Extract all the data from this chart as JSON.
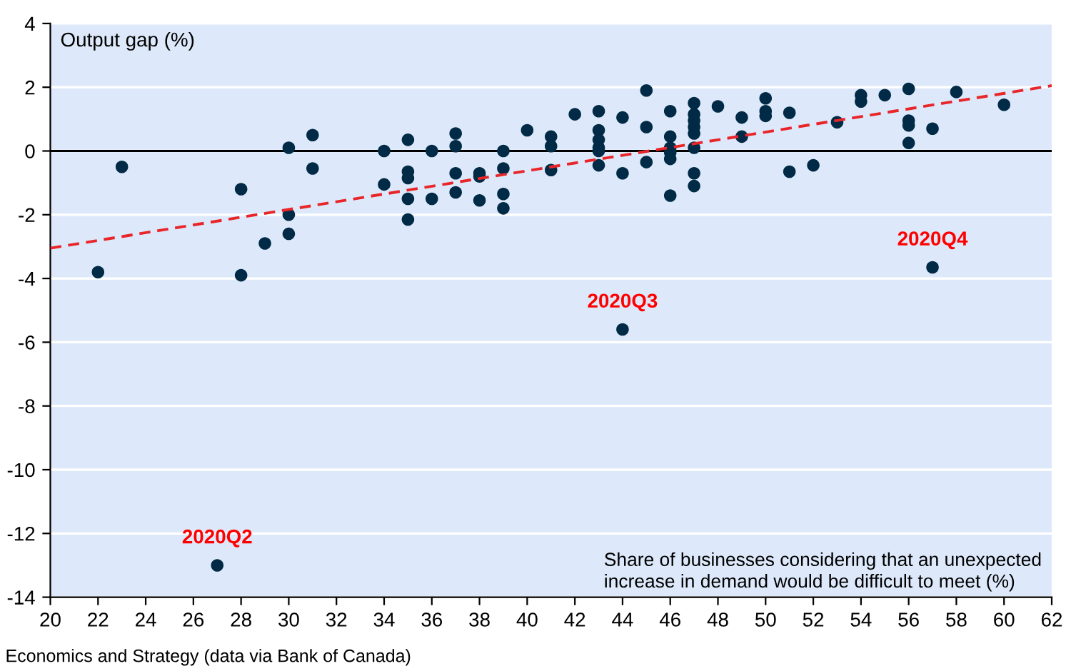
{
  "chart_data": {
    "type": "scatter",
    "xlabel": "Share of businesses considering that an unexpected\nincrease in demand would be difficult to meet (%)",
    "ylabel": "Output gap (%)",
    "xlim": [
      20,
      62
    ],
    "xticks": [
      20,
      22,
      24,
      26,
      28,
      30,
      32,
      34,
      36,
      38,
      40,
      42,
      44,
      46,
      48,
      50,
      52,
      54,
      56,
      58,
      60,
      62
    ],
    "ylim": [
      -14,
      4
    ],
    "yticks": [
      -14,
      -12,
      -10,
      -8,
      -6,
      -4,
      -2,
      0,
      2,
      4
    ],
    "grid": "y",
    "marker": "circle",
    "series": [
      {
        "color": "#002a45",
        "x": [
          22,
          23,
          27,
          28,
          28,
          29,
          30,
          30,
          30,
          31,
          31,
          34,
          34,
          35,
          35,
          35,
          35,
          35,
          36,
          36,
          37,
          37,
          37,
          37,
          38,
          38,
          38,
          39,
          39,
          39,
          39,
          40,
          41,
          41,
          41,
          42,
          43,
          43,
          43,
          43,
          43,
          43,
          44,
          44,
          44,
          45,
          45,
          45,
          46,
          46,
          46,
          46,
          46,
          46,
          47,
          47,
          47,
          47,
          47,
          47,
          47,
          47,
          48,
          49,
          49,
          50,
          50,
          50,
          51,
          51,
          52,
          53,
          54,
          54,
          55,
          56,
          56,
          56,
          56,
          57,
          57,
          58,
          60
        ],
        "values": [
          -3.8,
          -0.5,
          -13,
          -1.2,
          -3.9,
          -2.9,
          0.1,
          -2.0,
          -2.6,
          0.5,
          -0.55,
          0,
          -1.05,
          0.35,
          -0.65,
          -0.85,
          -1.5,
          -2.15,
          0,
          -1.5,
          0.55,
          0.15,
          -0.7,
          -1.3,
          -0.7,
          -0.8,
          -1.55,
          0,
          -0.55,
          -1.35,
          -1.8,
          0.65,
          0.45,
          0.15,
          -0.6,
          1.15,
          1.25,
          0.65,
          0.35,
          0.1,
          0,
          -0.45,
          1.05,
          -0.7,
          -5.6,
          1.9,
          0.75,
          -0.35,
          1.25,
          0.45,
          0.1,
          -0.05,
          -0.25,
          -1.4,
          1.5,
          1.15,
          0.95,
          0.75,
          0.55,
          0.1,
          -0.7,
          -1.1,
          1.4,
          1.05,
          0.45,
          1.65,
          1.25,
          1.1,
          1.2,
          -0.65,
          -0.45,
          0.9,
          1.75,
          1.55,
          1.75,
          1.95,
          0.95,
          0.8,
          0.25,
          0.7,
          -3.65,
          1.85,
          1.45
        ]
      },
      {
        "type": "line",
        "color": "#e8262a",
        "line_style": "dashed",
        "marker": "none",
        "x": [
          20,
          62
        ],
        "values": [
          -3.05,
          2.05
        ]
      }
    ],
    "ref_lines": [
      {
        "axis": "y",
        "value": 0,
        "color": "#000000"
      }
    ],
    "annotations": [
      {
        "text": "2020Q2",
        "x": 27,
        "y": -13
      },
      {
        "text": "2020Q3",
        "x": 44,
        "y": -5.6
      },
      {
        "text": "2020Q4",
        "x": 57,
        "y": -3.65
      },
      "Economics and Strategy (data via Bank of Canada)"
    ]
  }
}
